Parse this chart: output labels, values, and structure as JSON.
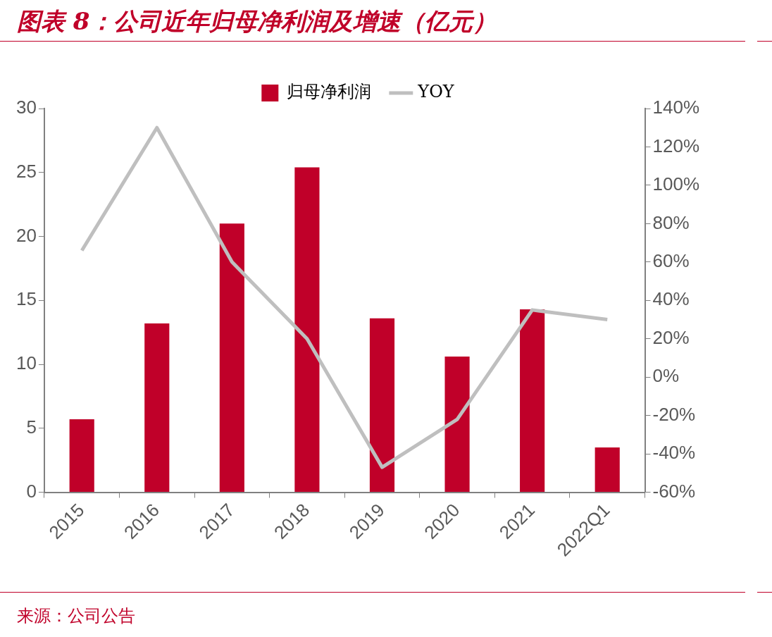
{
  "chart_data": {
    "type": "bar",
    "title": "图表 8：公司近年归母净利润及增速（亿元）",
    "categories": [
      "2015",
      "2016",
      "2017",
      "2018",
      "2019",
      "2020",
      "2021",
      "2022Q1"
    ],
    "series": [
      {
        "name": "归母净利润",
        "color": "#c00029",
        "values": [
          5.7,
          13.2,
          21.0,
          25.4,
          13.6,
          10.6,
          14.3,
          3.5
        ]
      },
      {
        "name": "YOY",
        "type": "line",
        "axis": "y2",
        "color": "#bfbfbf",
        "values": [
          66,
          130,
          60,
          20,
          -47,
          -22,
          35,
          30
        ]
      }
    ],
    "ylim": [
      0,
      30
    ],
    "yticks": [
      0,
      5,
      10,
      15,
      20,
      25,
      30
    ],
    "y2lim": [
      -60,
      140
    ],
    "y2ticks": [
      {
        "value": -60,
        "label": "-60%"
      },
      {
        "value": -40,
        "label": "-40%"
      },
      {
        "value": -20,
        "label": "-20%"
      },
      {
        "value": 0,
        "label": "0%"
      },
      {
        "value": 20,
        "label": "20%"
      },
      {
        "value": 40,
        "label": "40%"
      },
      {
        "value": 60,
        "label": "60%"
      },
      {
        "value": 80,
        "label": "80%"
      },
      {
        "value": 100,
        "label": "100%"
      },
      {
        "value": 120,
        "label": "120%"
      },
      {
        "value": 140,
        "label": "140%"
      }
    ],
    "legend": "top",
    "grid": false,
    "marker": "none",
    "annotations": [
      "来源：公司公告"
    ]
  }
}
